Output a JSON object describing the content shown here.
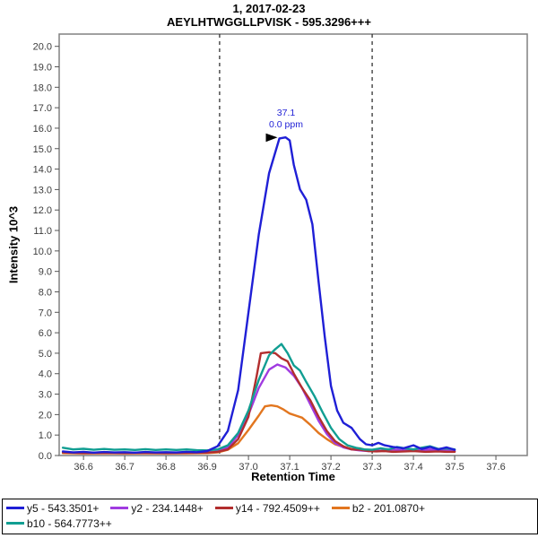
{
  "chart_data": {
    "type": "line",
    "title": "1, 2017-02-23",
    "subtitle": "AEYLHTWGGLLPVISK - 595.3296+++",
    "xlabel": "Retention Time",
    "ylabel": "Intensity 10^3",
    "xlim": [
      36.541,
      37.676
    ],
    "ylim": [
      0,
      20.6
    ],
    "x_ticks": [
      36.6,
      36.7,
      36.8,
      36.9,
      37.0,
      37.1,
      37.2,
      37.3,
      37.4,
      37.5,
      37.6
    ],
    "y_ticks": [
      0.0,
      1.0,
      2.0,
      3.0,
      4.0,
      5.0,
      6.0,
      7.0,
      8.0,
      9.0,
      10.0,
      11.0,
      12.0,
      13.0,
      14.0,
      15.0,
      16.0,
      17.0,
      18.0,
      19.0,
      20.0
    ],
    "grid": "off",
    "legend_position": "bottom",
    "integration_boundaries": [
      36.93,
      37.3
    ],
    "peak_annotation": {
      "time_label": "37.1",
      "mass_error_label": "0.0 ppm",
      "x": 37.09,
      "y": 15.55
    },
    "colors": {
      "axis_border": "#808080",
      "tick": "#555555",
      "boundary_line": "#333333",
      "annotation_text": "#1f1fd6",
      "arrow": "#000000"
    },
    "series": [
      {
        "name": "b2",
        "label": "b2 - 201.0870+",
        "color": "#e2761f",
        "points": [
          [
            36.55,
            0.12
          ],
          [
            36.6,
            0.1
          ],
          [
            36.65,
            0.11
          ],
          [
            36.7,
            0.1
          ],
          [
            36.75,
            0.11
          ],
          [
            36.8,
            0.1
          ],
          [
            36.85,
            0.11
          ],
          [
            36.9,
            0.12
          ],
          [
            36.925,
            0.15
          ],
          [
            36.95,
            0.28
          ],
          [
            36.975,
            0.6
          ],
          [
            37.0,
            1.25
          ],
          [
            37.025,
            1.95
          ],
          [
            37.04,
            2.4
          ],
          [
            37.055,
            2.45
          ],
          [
            37.07,
            2.4
          ],
          [
            37.085,
            2.25
          ],
          [
            37.1,
            2.05
          ],
          [
            37.115,
            1.95
          ],
          [
            37.13,
            1.85
          ],
          [
            37.15,
            1.5
          ],
          [
            37.17,
            1.1
          ],
          [
            37.19,
            0.8
          ],
          [
            37.21,
            0.55
          ],
          [
            37.23,
            0.42
          ],
          [
            37.25,
            0.32
          ],
          [
            37.27,
            0.35
          ],
          [
            37.29,
            0.25
          ],
          [
            37.31,
            0.22
          ],
          [
            37.33,
            0.25
          ],
          [
            37.35,
            0.2
          ],
          [
            37.38,
            0.22
          ],
          [
            37.4,
            0.25
          ],
          [
            37.43,
            0.2
          ],
          [
            37.46,
            0.22
          ],
          [
            37.48,
            0.2
          ],
          [
            37.5,
            0.2
          ]
        ]
      },
      {
        "name": "y2",
        "label": "y2 - 234.1448+",
        "color": "#a03be0",
        "points": [
          [
            36.55,
            0.16
          ],
          [
            36.6,
            0.14
          ],
          [
            36.65,
            0.15
          ],
          [
            36.7,
            0.13
          ],
          [
            36.75,
            0.15
          ],
          [
            36.8,
            0.13
          ],
          [
            36.85,
            0.15
          ],
          [
            36.9,
            0.15
          ],
          [
            36.925,
            0.2
          ],
          [
            36.95,
            0.4
          ],
          [
            36.975,
            1.0
          ],
          [
            37.0,
            2.0
          ],
          [
            37.025,
            3.3
          ],
          [
            37.05,
            4.2
          ],
          [
            37.07,
            4.45
          ],
          [
            37.09,
            4.3
          ],
          [
            37.11,
            3.9
          ],
          [
            37.13,
            3.3
          ],
          [
            37.15,
            2.5
          ],
          [
            37.17,
            1.7
          ],
          [
            37.19,
            1.05
          ],
          [
            37.21,
            0.6
          ],
          [
            37.23,
            0.4
          ],
          [
            37.25,
            0.3
          ],
          [
            37.27,
            0.25
          ],
          [
            37.29,
            0.22
          ],
          [
            37.31,
            0.25
          ],
          [
            37.33,
            0.22
          ],
          [
            37.35,
            0.3
          ],
          [
            37.37,
            0.25
          ],
          [
            37.4,
            0.3
          ],
          [
            37.42,
            0.25
          ],
          [
            37.44,
            0.3
          ],
          [
            37.46,
            0.25
          ],
          [
            37.48,
            0.28
          ],
          [
            37.5,
            0.22
          ]
        ]
      },
      {
        "name": "y14",
        "label": "y14 - 792.4509++",
        "color": "#b22e2e",
        "points": [
          [
            36.55,
            0.15
          ],
          [
            36.6,
            0.12
          ],
          [
            36.65,
            0.13
          ],
          [
            36.7,
            0.12
          ],
          [
            36.75,
            0.13
          ],
          [
            36.8,
            0.12
          ],
          [
            36.85,
            0.13
          ],
          [
            36.9,
            0.14
          ],
          [
            36.925,
            0.18
          ],
          [
            36.95,
            0.3
          ],
          [
            36.975,
            0.8
          ],
          [
            37.0,
            1.9
          ],
          [
            37.02,
            3.9
          ],
          [
            37.03,
            5.0
          ],
          [
            37.05,
            5.05
          ],
          [
            37.065,
            5.0
          ],
          [
            37.08,
            4.75
          ],
          [
            37.095,
            4.6
          ],
          [
            37.11,
            4.0
          ],
          [
            37.13,
            3.3
          ],
          [
            37.15,
            2.7
          ],
          [
            37.17,
            1.9
          ],
          [
            37.19,
            1.2
          ],
          [
            37.21,
            0.7
          ],
          [
            37.23,
            0.45
          ],
          [
            37.25,
            0.3
          ],
          [
            37.27,
            0.28
          ],
          [
            37.29,
            0.22
          ],
          [
            37.31,
            0.2
          ],
          [
            37.33,
            0.22
          ],
          [
            37.35,
            0.18
          ],
          [
            37.38,
            0.2
          ],
          [
            37.4,
            0.22
          ],
          [
            37.43,
            0.18
          ],
          [
            37.46,
            0.2
          ],
          [
            37.48,
            0.18
          ],
          [
            37.5,
            0.18
          ]
        ]
      },
      {
        "name": "b10",
        "label": "b10 - 564.7773++",
        "color": "#119e92",
        "points": [
          [
            36.55,
            0.38
          ],
          [
            36.575,
            0.3
          ],
          [
            36.6,
            0.33
          ],
          [
            36.625,
            0.28
          ],
          [
            36.65,
            0.32
          ],
          [
            36.675,
            0.28
          ],
          [
            36.7,
            0.3
          ],
          [
            36.725,
            0.27
          ],
          [
            36.75,
            0.31
          ],
          [
            36.775,
            0.27
          ],
          [
            36.8,
            0.3
          ],
          [
            36.825,
            0.27
          ],
          [
            36.85,
            0.3
          ],
          [
            36.875,
            0.26
          ],
          [
            36.9,
            0.25
          ],
          [
            36.925,
            0.3
          ],
          [
            36.95,
            0.5
          ],
          [
            36.975,
            1.1
          ],
          [
            37.0,
            2.2
          ],
          [
            37.025,
            3.7
          ],
          [
            37.05,
            4.9
          ],
          [
            37.065,
            5.2
          ],
          [
            37.08,
            5.45
          ],
          [
            37.095,
            5.0
          ],
          [
            37.11,
            4.4
          ],
          [
            37.125,
            4.15
          ],
          [
            37.14,
            3.6
          ],
          [
            37.16,
            2.9
          ],
          [
            37.18,
            2.1
          ],
          [
            37.2,
            1.35
          ],
          [
            37.22,
            0.8
          ],
          [
            37.24,
            0.5
          ],
          [
            37.26,
            0.38
          ],
          [
            37.28,
            0.3
          ],
          [
            37.3,
            0.28
          ],
          [
            37.32,
            0.35
          ],
          [
            37.34,
            0.3
          ],
          [
            37.36,
            0.42
          ],
          [
            37.38,
            0.35
          ],
          [
            37.4,
            0.3
          ],
          [
            37.42,
            0.38
          ],
          [
            37.44,
            0.45
          ],
          [
            37.46,
            0.32
          ],
          [
            37.48,
            0.35
          ],
          [
            37.5,
            0.3
          ]
        ]
      },
      {
        "name": "y5",
        "label": "y5 - 543.3501+",
        "color": "#1f1fd6",
        "points": [
          [
            36.55,
            0.2
          ],
          [
            36.575,
            0.15
          ],
          [
            36.6,
            0.18
          ],
          [
            36.625,
            0.14
          ],
          [
            36.65,
            0.17
          ],
          [
            36.675,
            0.15
          ],
          [
            36.7,
            0.16
          ],
          [
            36.725,
            0.14
          ],
          [
            36.75,
            0.17
          ],
          [
            36.775,
            0.15
          ],
          [
            36.8,
            0.16
          ],
          [
            36.825,
            0.15
          ],
          [
            36.85,
            0.18
          ],
          [
            36.875,
            0.16
          ],
          [
            36.9,
            0.22
          ],
          [
            36.925,
            0.45
          ],
          [
            36.95,
            1.2
          ],
          [
            36.975,
            3.2
          ],
          [
            37.0,
            7.0
          ],
          [
            37.025,
            10.8
          ],
          [
            37.05,
            13.8
          ],
          [
            37.075,
            15.5
          ],
          [
            37.09,
            15.55
          ],
          [
            37.1,
            15.4
          ],
          [
            37.11,
            14.2
          ],
          [
            37.125,
            13.0
          ],
          [
            37.14,
            12.5
          ],
          [
            37.155,
            11.3
          ],
          [
            37.17,
            8.5
          ],
          [
            37.185,
            5.8
          ],
          [
            37.2,
            3.4
          ],
          [
            37.215,
            2.2
          ],
          [
            37.23,
            1.6
          ],
          [
            37.25,
            1.35
          ],
          [
            37.27,
            0.8
          ],
          [
            37.285,
            0.55
          ],
          [
            37.3,
            0.5
          ],
          [
            37.315,
            0.62
          ],
          [
            37.33,
            0.5
          ],
          [
            37.35,
            0.42
          ],
          [
            37.375,
            0.35
          ],
          [
            37.4,
            0.5
          ],
          [
            37.42,
            0.32
          ],
          [
            37.44,
            0.42
          ],
          [
            37.46,
            0.3
          ],
          [
            37.48,
            0.4
          ],
          [
            37.5,
            0.28
          ]
        ]
      }
    ],
    "legend_order": [
      "y5",
      "y2",
      "y14",
      "b2",
      "b10"
    ]
  }
}
